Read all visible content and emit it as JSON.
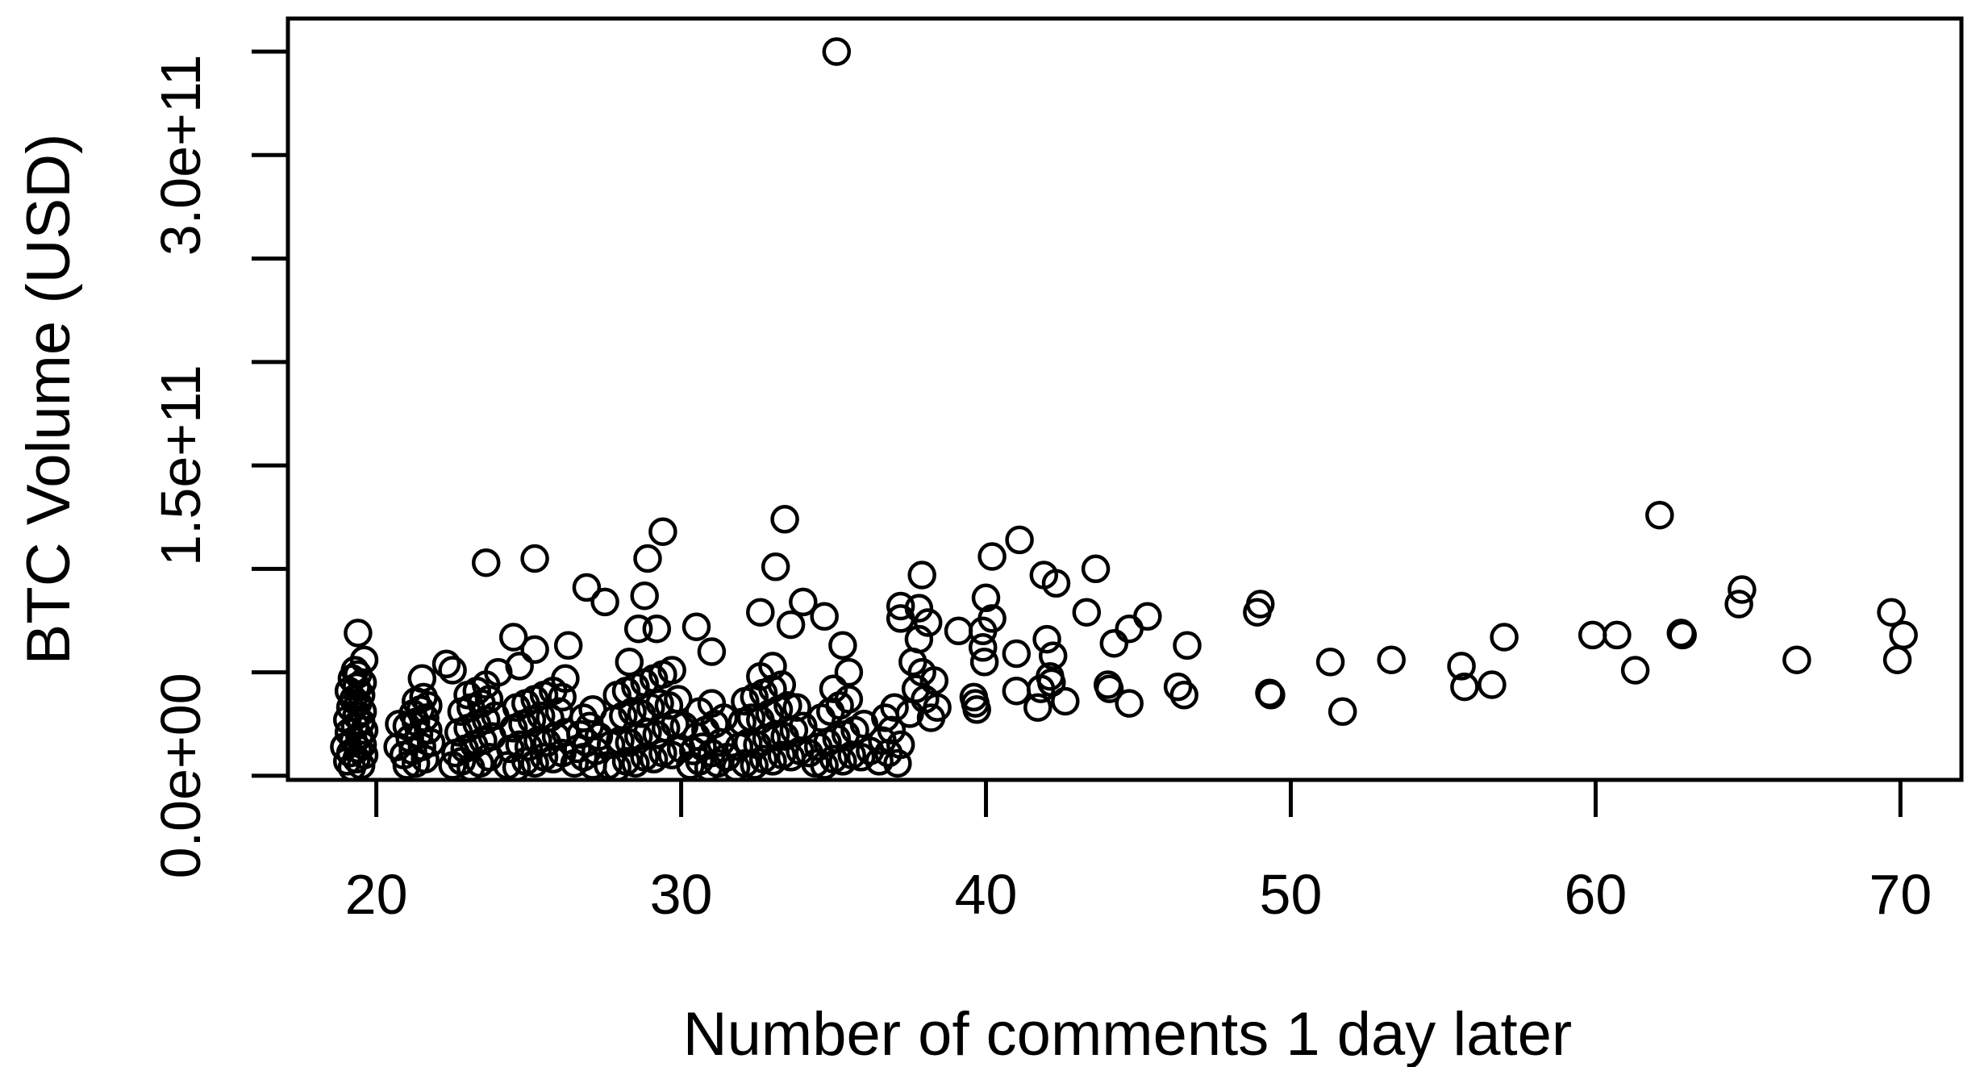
{
  "colors": {
    "foreground": "#000000",
    "background": "#ffffff"
  },
  "chart_data": {
    "type": "scatter",
    "title": "",
    "xlabel": "Number of comments 1 day later",
    "ylabel": "BTC Volume (USD)",
    "legend": null,
    "grid": false,
    "marker": "open-circle",
    "marker_color": "#000000",
    "xlim": [
      17.1,
      72.0
    ],
    "ylim_billions": [
      -2,
      366
    ],
    "y_unit": "USD (y values stored in billions, 1e9)",
    "x_ticks": [
      {
        "v": 20,
        "label": "20"
      },
      {
        "v": 30,
        "label": "30"
      },
      {
        "v": 40,
        "label": "40"
      },
      {
        "v": 50,
        "label": "50"
      },
      {
        "v": 60,
        "label": "60"
      },
      {
        "v": 70,
        "label": "70"
      }
    ],
    "y_ticks": [
      {
        "v": 0,
        "label": "0.0e+00"
      },
      {
        "v": 50,
        "label": ""
      },
      {
        "v": 100,
        "label": ""
      },
      {
        "v": 150,
        "label": "1.5e+11"
      },
      {
        "v": 200,
        "label": ""
      },
      {
        "v": 250,
        "label": ""
      },
      {
        "v": 300,
        "label": "3.0e+11"
      },
      {
        "v": 350,
        "label": ""
      }
    ],
    "outlier": [
      35.1,
      350
    ],
    "points": [
      [
        19.2,
        4
      ],
      [
        19.5,
        5
      ],
      [
        19.05,
        7
      ],
      [
        19.35,
        8
      ],
      [
        19.6,
        10
      ],
      [
        19.15,
        11
      ],
      [
        19.4,
        13
      ],
      [
        18.95,
        14
      ],
      [
        19.55,
        15
      ],
      [
        19.25,
        17
      ],
      [
        19.45,
        19
      ],
      [
        19.1,
        21
      ],
      [
        19.6,
        22
      ],
      [
        19.3,
        24
      ],
      [
        19.5,
        26
      ],
      [
        19.05,
        27
      ],
      [
        19.35,
        29
      ],
      [
        19.55,
        31
      ],
      [
        19.15,
        33
      ],
      [
        19.4,
        35
      ],
      [
        19.25,
        37
      ],
      [
        19.5,
        39
      ],
      [
        19.1,
        41
      ],
      [
        19.35,
        43
      ],
      [
        19.55,
        45
      ],
      [
        19.2,
        47
      ],
      [
        19.4,
        49
      ],
      [
        19.3,
        51
      ],
      [
        19.6,
        56
      ],
      [
        19.4,
        69
      ],
      [
        20.7,
        14
      ],
      [
        20.75,
        25
      ],
      [
        21.0,
        5
      ],
      [
        21.3,
        6
      ],
      [
        21.6,
        8
      ],
      [
        20.9,
        10
      ],
      [
        21.2,
        12
      ],
      [
        21.5,
        14
      ],
      [
        21.8,
        16
      ],
      [
        21.1,
        18
      ],
      [
        21.4,
        20
      ],
      [
        21.7,
        22
      ],
      [
        21.0,
        24
      ],
      [
        21.3,
        26
      ],
      [
        21.6,
        28
      ],
      [
        21.2,
        30
      ],
      [
        21.45,
        32
      ],
      [
        21.7,
        34
      ],
      [
        21.3,
        36
      ],
      [
        21.55,
        38
      ],
      [
        21.5,
        47
      ],
      [
        22.3,
        54
      ],
      [
        22.5,
        5
      ],
      [
        22.8,
        7
      ],
      [
        23.1,
        4
      ],
      [
        23.4,
        6
      ],
      [
        23.7,
        9
      ],
      [
        22.6,
        11
      ],
      [
        22.9,
        13
      ],
      [
        23.2,
        15
      ],
      [
        23.5,
        17
      ],
      [
        23.8,
        19
      ],
      [
        22.7,
        21
      ],
      [
        23.0,
        23
      ],
      [
        23.3,
        25
      ],
      [
        23.6,
        27
      ],
      [
        23.9,
        29
      ],
      [
        22.8,
        31
      ],
      [
        23.1,
        33
      ],
      [
        23.45,
        35
      ],
      [
        23.7,
        37
      ],
      [
        23.0,
        39
      ],
      [
        23.3,
        41
      ],
      [
        23.6,
        44
      ],
      [
        22.5,
        51
      ],
      [
        23.6,
        103
      ],
      [
        24.3,
        5
      ],
      [
        24.6,
        4
      ],
      [
        24.9,
        7
      ],
      [
        25.2,
        6
      ],
      [
        25.5,
        9
      ],
      [
        25.8,
        8
      ],
      [
        26.1,
        11
      ],
      [
        24.4,
        13
      ],
      [
        24.7,
        15
      ],
      [
        25.0,
        14
      ],
      [
        25.3,
        17
      ],
      [
        25.6,
        16
      ],
      [
        25.9,
        19
      ],
      [
        26.2,
        21
      ],
      [
        24.5,
        23
      ],
      [
        24.8,
        25
      ],
      [
        25.1,
        27
      ],
      [
        25.4,
        29
      ],
      [
        25.7,
        28
      ],
      [
        26.0,
        31
      ],
      [
        24.6,
        33
      ],
      [
        24.9,
        35
      ],
      [
        25.2,
        37
      ],
      [
        25.5,
        39
      ],
      [
        25.8,
        41
      ],
      [
        26.2,
        47
      ],
      [
        26.1,
        38
      ],
      [
        24.0,
        50
      ],
      [
        24.7,
        53
      ],
      [
        24.5,
        67
      ],
      [
        25.2,
        61
      ],
      [
        26.3,
        63
      ],
      [
        25.2,
        105
      ],
      [
        26.5,
        6
      ],
      [
        26.8,
        9
      ],
      [
        27.1,
        5
      ],
      [
        26.6,
        13
      ],
      [
        26.9,
        16
      ],
      [
        27.2,
        12
      ],
      [
        26.7,
        20
      ],
      [
        27.0,
        24
      ],
      [
        27.3,
        19
      ],
      [
        26.8,
        28
      ],
      [
        27.1,
        32
      ],
      [
        26.9,
        91
      ],
      [
        27.6,
        5
      ],
      [
        27.9,
        4
      ],
      [
        28.2,
        7
      ],
      [
        28.5,
        6
      ],
      [
        28.8,
        9
      ],
      [
        29.1,
        8
      ],
      [
        29.4,
        11
      ],
      [
        29.7,
        10
      ],
      [
        30.0,
        13
      ],
      [
        27.7,
        15
      ],
      [
        28.0,
        17
      ],
      [
        28.3,
        16
      ],
      [
        28.6,
        19
      ],
      [
        28.9,
        21
      ],
      [
        29.2,
        20
      ],
      [
        29.5,
        23
      ],
      [
        29.8,
        25
      ],
      [
        30.1,
        24
      ],
      [
        27.8,
        27
      ],
      [
        28.1,
        29
      ],
      [
        28.4,
        31
      ],
      [
        28.7,
        30
      ],
      [
        29.0,
        33
      ],
      [
        29.3,
        35
      ],
      [
        29.6,
        34
      ],
      [
        29.9,
        37
      ],
      [
        27.9,
        39
      ],
      [
        28.2,
        41
      ],
      [
        28.5,
        43
      ],
      [
        28.8,
        45
      ],
      [
        29.1,
        47
      ],
      [
        29.4,
        49
      ],
      [
        29.7,
        51
      ],
      [
        28.3,
        55
      ],
      [
        28.6,
        71
      ],
      [
        29.2,
        71
      ],
      [
        28.8,
        87
      ],
      [
        27.5,
        84
      ],
      [
        28.9,
        105
      ],
      [
        29.4,
        118
      ],
      [
        30.3,
        5
      ],
      [
        30.6,
        7
      ],
      [
        30.9,
        4
      ],
      [
        31.2,
        6
      ],
      [
        31.5,
        9
      ],
      [
        30.4,
        12
      ],
      [
        30.7,
        14
      ],
      [
        31.0,
        11
      ],
      [
        31.3,
        16
      ],
      [
        30.5,
        19
      ],
      [
        30.8,
        22
      ],
      [
        31.1,
        25
      ],
      [
        31.4,
        28
      ],
      [
        30.6,
        31
      ],
      [
        31.0,
        35
      ],
      [
        30.5,
        72
      ],
      [
        31.0,
        60
      ],
      [
        31.8,
        4
      ],
      [
        32.1,
        6
      ],
      [
        32.4,
        5
      ],
      [
        32.7,
        8
      ],
      [
        33.0,
        7
      ],
      [
        33.3,
        10
      ],
      [
        33.6,
        9
      ],
      [
        33.9,
        12
      ],
      [
        34.2,
        11
      ],
      [
        31.9,
        14
      ],
      [
        32.2,
        16
      ],
      [
        32.5,
        15
      ],
      [
        32.8,
        18
      ],
      [
        33.1,
        20
      ],
      [
        33.4,
        19
      ],
      [
        33.7,
        22
      ],
      [
        34.0,
        24
      ],
      [
        32.0,
        26
      ],
      [
        32.3,
        28
      ],
      [
        32.6,
        27
      ],
      [
        32.9,
        30
      ],
      [
        33.2,
        32
      ],
      [
        33.5,
        34
      ],
      [
        33.8,
        33
      ],
      [
        32.1,
        36
      ],
      [
        32.4,
        38
      ],
      [
        32.7,
        40
      ],
      [
        33.0,
        42
      ],
      [
        33.3,
        44
      ],
      [
        32.6,
        48
      ],
      [
        33.0,
        53
      ],
      [
        32.6,
        79
      ],
      [
        33.6,
        73
      ],
      [
        34.0,
        84
      ],
      [
        33.1,
        101
      ],
      [
        33.4,
        124
      ],
      [
        34.4,
        6
      ],
      [
        34.7,
        5
      ],
      [
        35.0,
        8
      ],
      [
        35.3,
        7
      ],
      [
        35.6,
        10
      ],
      [
        35.9,
        9
      ],
      [
        36.2,
        12
      ],
      [
        34.5,
        14
      ],
      [
        34.8,
        16
      ],
      [
        35.1,
        18
      ],
      [
        35.4,
        20
      ],
      [
        35.7,
        22
      ],
      [
        36.0,
        25
      ],
      [
        34.6,
        28
      ],
      [
        34.9,
        31
      ],
      [
        35.2,
        34
      ],
      [
        35.5,
        37
      ],
      [
        35.0,
        42
      ],
      [
        34.7,
        77
      ],
      [
        35.3,
        63
      ],
      [
        35.5,
        50
      ],
      [
        36.5,
        7
      ],
      [
        36.8,
        11
      ],
      [
        37.1,
        6
      ],
      [
        36.6,
        17
      ],
      [
        36.9,
        22
      ],
      [
        37.2,
        15
      ],
      [
        36.7,
        28
      ],
      [
        37.0,
        33
      ],
      [
        37.2,
        82
      ],
      [
        37.2,
        76
      ],
      [
        37.9,
        97
      ],
      [
        37.8,
        81
      ],
      [
        38.1,
        74
      ],
      [
        37.8,
        66
      ],
      [
        37.6,
        55
      ],
      [
        37.9,
        50
      ],
      [
        38.3,
        46
      ],
      [
        37.7,
        42
      ],
      [
        38.0,
        37
      ],
      [
        38.4,
        33
      ],
      [
        37.5,
        30
      ],
      [
        38.2,
        28
      ],
      [
        39.1,
        70
      ],
      [
        39.9,
        70
      ],
      [
        40.2,
        106
      ],
      [
        40.0,
        86
      ],
      [
        40.2,
        76
      ],
      [
        39.9,
        62
      ],
      [
        39.95,
        55
      ],
      [
        39.6,
        38
      ],
      [
        39.65,
        35
      ],
      [
        39.7,
        32
      ],
      [
        41.1,
        114
      ],
      [
        41.0,
        59
      ],
      [
        41.0,
        41
      ],
      [
        41.9,
        97
      ],
      [
        42.3,
        93
      ],
      [
        42.0,
        66
      ],
      [
        42.2,
        58
      ],
      [
        42.1,
        48
      ],
      [
        42.15,
        45
      ],
      [
        41.8,
        42
      ],
      [
        41.7,
        33
      ],
      [
        42.6,
        36
      ],
      [
        43.3,
        79
      ],
      [
        43.6,
        100
      ],
      [
        44.2,
        64
      ],
      [
        44.0,
        44
      ],
      [
        44.05,
        42
      ],
      [
        44.7,
        71
      ],
      [
        44.7,
        35
      ],
      [
        45.3,
        77
      ],
      [
        46.3,
        43
      ],
      [
        46.5,
        39
      ],
      [
        46.6,
        63
      ],
      [
        48.9,
        79
      ],
      [
        49.0,
        83
      ],
      [
        49.3,
        40
      ],
      [
        49.35,
        39
      ],
      [
        51.3,
        55
      ],
      [
        51.7,
        31
      ],
      [
        53.3,
        56
      ],
      [
        55.6,
        53
      ],
      [
        55.7,
        43
      ],
      [
        56.6,
        44
      ],
      [
        57.0,
        67
      ],
      [
        59.9,
        68
      ],
      [
        60.7,
        68
      ],
      [
        61.3,
        51
      ],
      [
        62.1,
        126
      ],
      [
        62.8,
        69
      ],
      [
        62.85,
        68
      ],
      [
        64.8,
        90
      ],
      [
        64.7,
        83
      ],
      [
        66.6,
        56
      ],
      [
        69.7,
        79
      ],
      [
        70.1,
        68
      ],
      [
        69.9,
        56
      ],
      [
        35.1,
        350
      ]
    ]
  }
}
